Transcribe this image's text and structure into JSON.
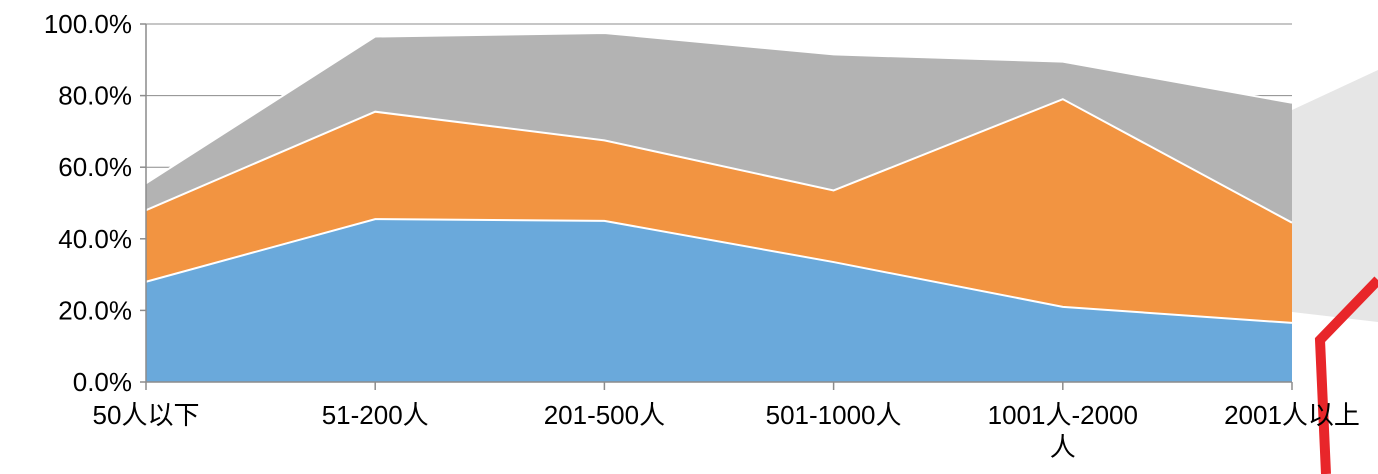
{
  "chart_data": {
    "type": "area",
    "stacked": true,
    "categories": [
      [
        "50人以下"
      ],
      [
        "51-200人"
      ],
      [
        "201-500人"
      ],
      [
        "501-1000人"
      ],
      [
        "1001人-2000",
        "人"
      ],
      [
        "2001人以上"
      ]
    ],
    "series": [
      {
        "color": "#6aa9db",
        "values": [
          28,
          45.5,
          45,
          33.5,
          21,
          16.5
        ]
      },
      {
        "color": "#f29441",
        "values": [
          20,
          30,
          22.5,
          20,
          58,
          28
        ]
      },
      {
        "color": "#b3b3b3",
        "values": [
          7.5,
          21,
          30,
          38,
          10.5,
          33.5
        ]
      }
    ],
    "ylim": [
      0,
      100
    ],
    "yticks": [
      0,
      20,
      40,
      60,
      80,
      100
    ],
    "ytick_labels": [
      "0.0%",
      "20.0%",
      "40.0%",
      "60.0%",
      "80.0%",
      "100.0%"
    ],
    "grid": true,
    "legend": "none",
    "title": "",
    "xlabel": "",
    "ylabel": ""
  }
}
